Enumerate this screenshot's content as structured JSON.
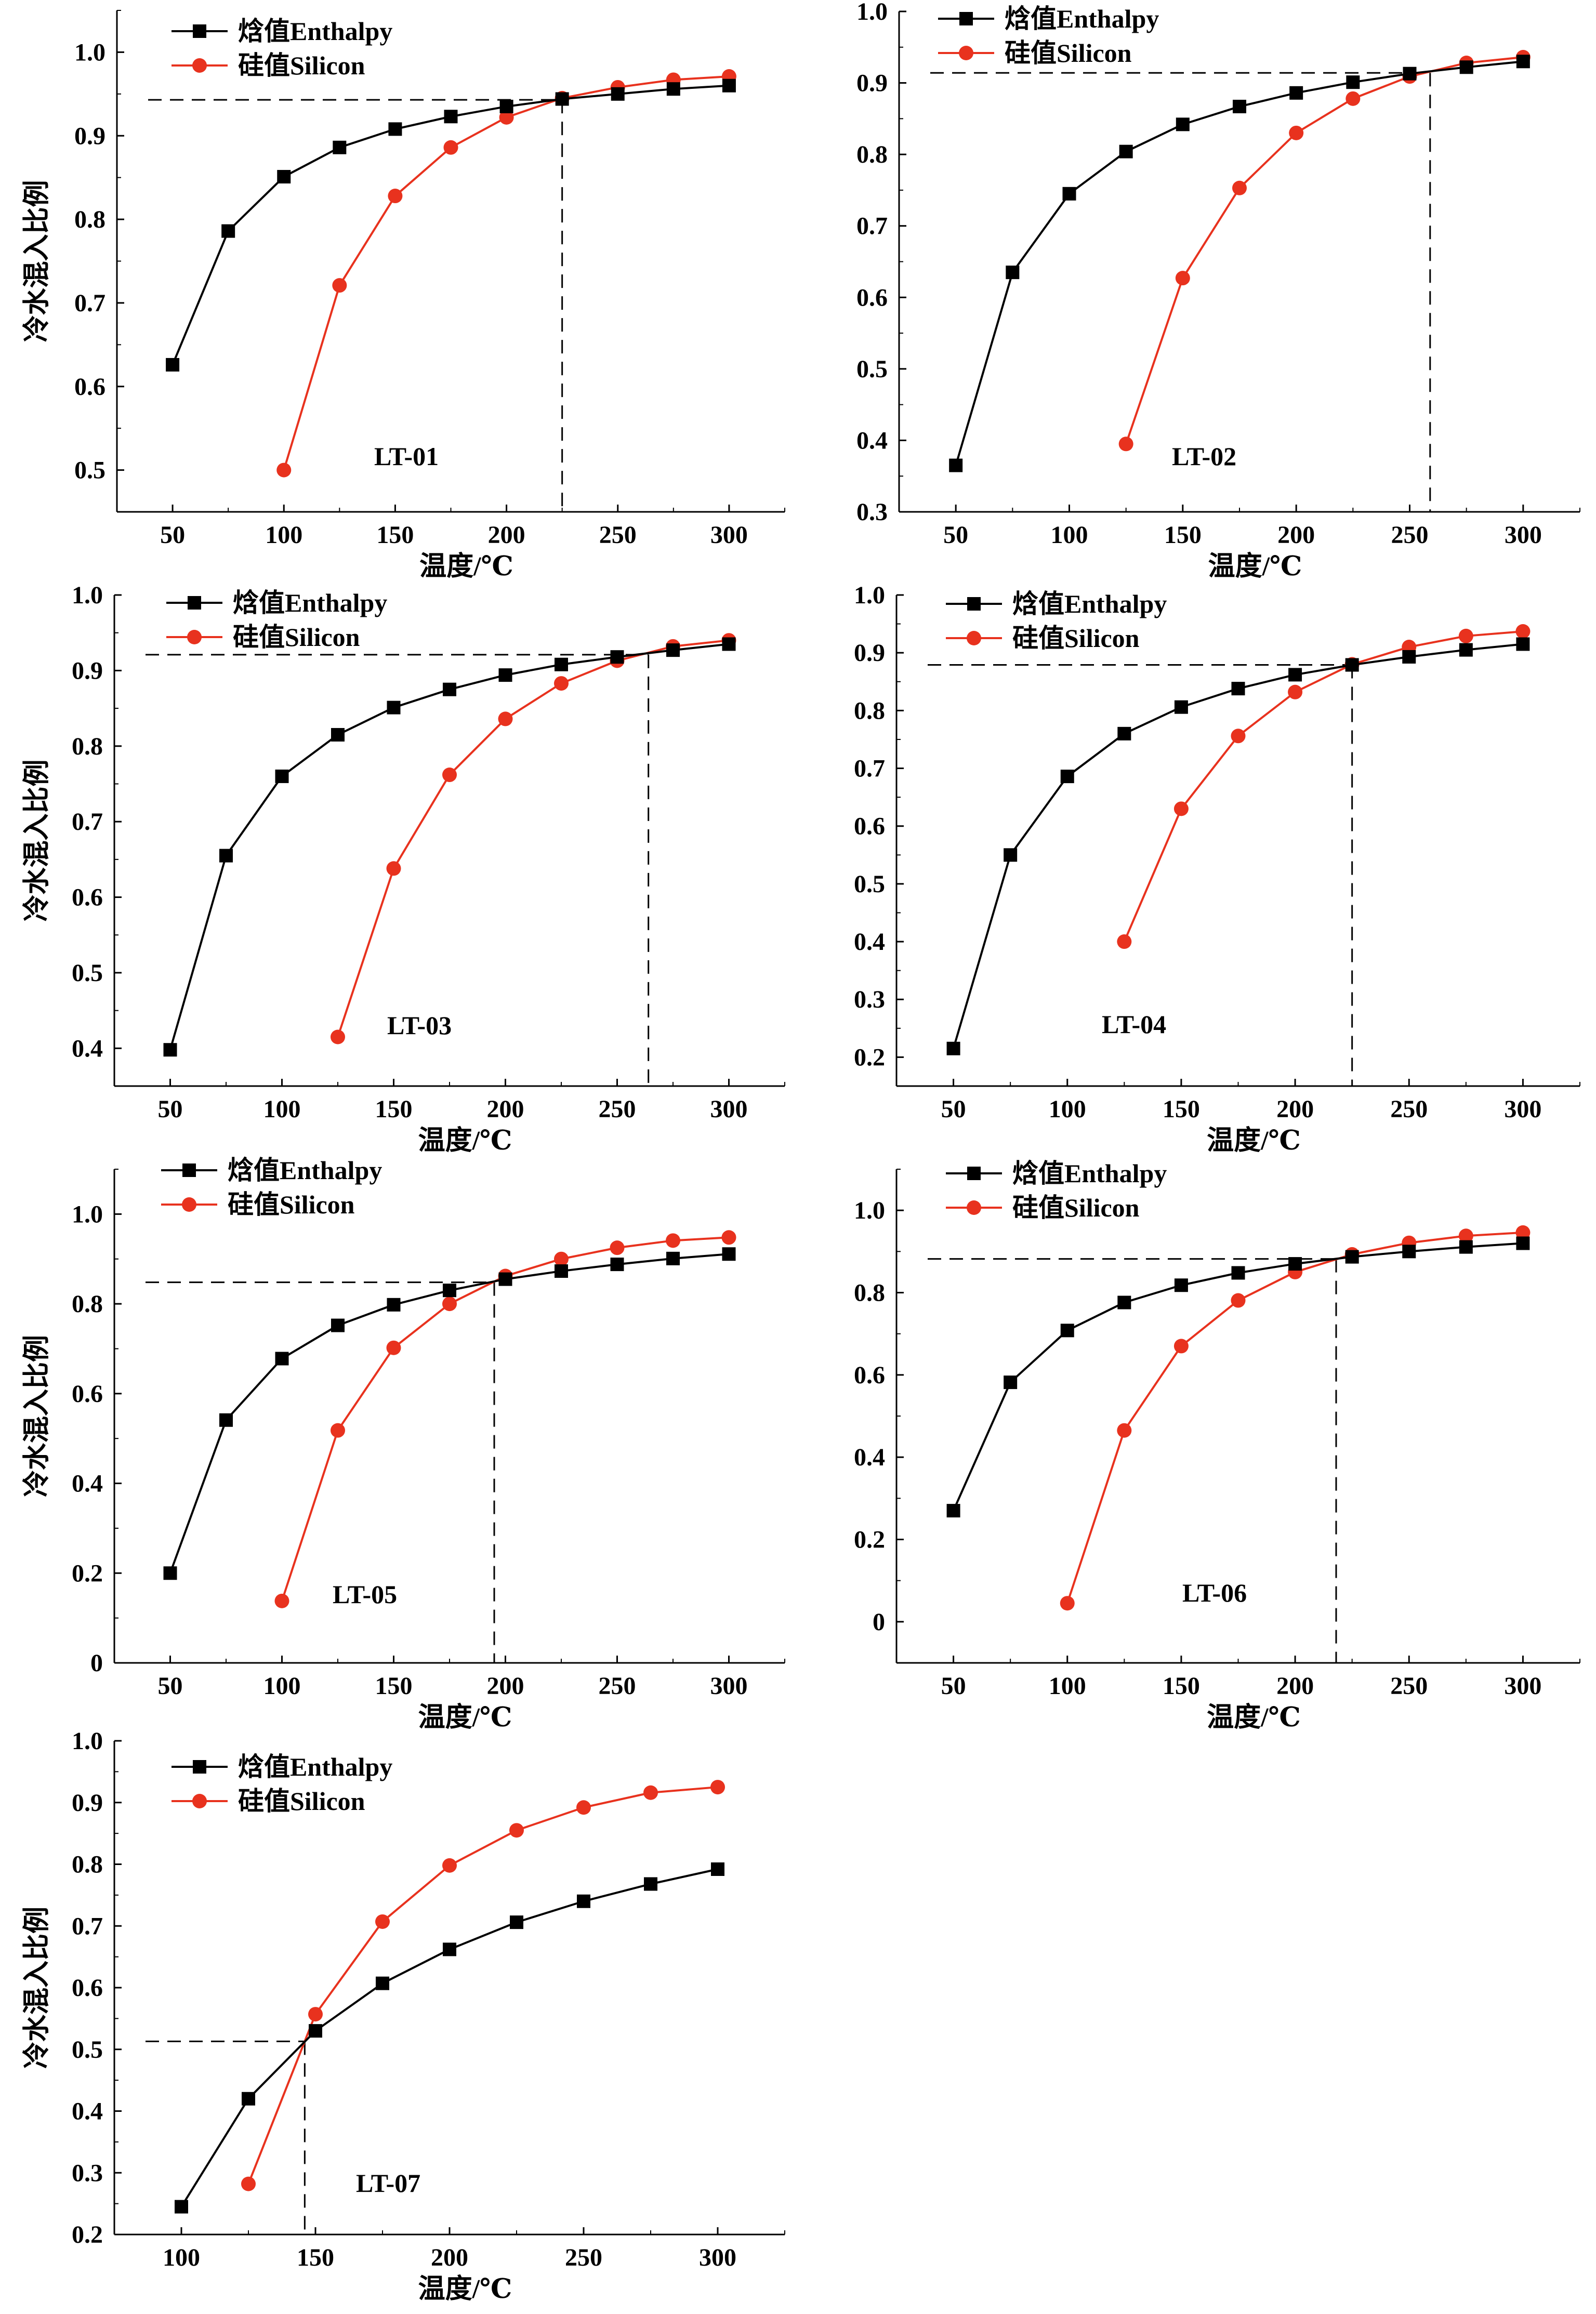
{
  "colors": {
    "enthalpy": "#000000",
    "silicon": "#e8321e",
    "axis": "#000000"
  },
  "chart_data": [
    {
      "type": "line",
      "panel_label": "LT-01",
      "x": [
        50,
        75,
        100,
        125,
        150,
        175,
        200,
        225,
        250,
        275,
        300
      ],
      "series": [
        {
          "name": "焓值Enthalpy",
          "marker": "square",
          "x": [
            50,
            75,
            100,
            125,
            150,
            175,
            200,
            225,
            250,
            275,
            300
          ],
          "values": [
            0.626,
            0.786,
            0.851,
            0.886,
            0.908,
            0.923,
            0.935,
            0.944,
            0.95,
            0.956,
            0.96
          ]
        },
        {
          "name": "硅值Silicon",
          "marker": "circle",
          "x": [
            100,
            125,
            150,
            175,
            200,
            225,
            250,
            275,
            300
          ],
          "values": [
            0.5,
            0.721,
            0.828,
            0.886,
            0.922,
            0.945,
            0.958,
            0.967,
            0.971
          ]
        }
      ],
      "xlabel": "温度/℃",
      "ylabel": "冷水混入比例",
      "xlim": [
        25,
        325
      ],
      "ylim": [
        0.45,
        1.05
      ],
      "xticks": [
        50,
        100,
        150,
        200,
        250,
        300
      ],
      "yticks": [
        0.5,
        0.6,
        0.7,
        0.8,
        0.9,
        1.0
      ],
      "intersection": {
        "x": 225,
        "y": 0.943
      }
    },
    {
      "type": "line",
      "panel_label": "LT-02",
      "x": [
        50,
        75,
        100,
        125,
        150,
        175,
        200,
        225,
        250,
        275,
        300
      ],
      "series": [
        {
          "name": "焓值Enthalpy",
          "marker": "square",
          "x": [
            50,
            75,
            100,
            125,
            150,
            175,
            200,
            225,
            250,
            275,
            300
          ],
          "values": [
            0.365,
            0.635,
            0.745,
            0.804,
            0.842,
            0.867,
            0.886,
            0.901,
            0.913,
            0.922,
            0.93
          ]
        },
        {
          "name": "硅值Silicon",
          "marker": "circle",
          "x": [
            125,
            150,
            175,
            200,
            225,
            250,
            275,
            300
          ],
          "values": [
            0.395,
            0.627,
            0.753,
            0.83,
            0.878,
            0.909,
            0.928,
            0.936
          ]
        }
      ],
      "xlabel": "温度/℃",
      "ylabel": "",
      "xlim": [
        25,
        325
      ],
      "ylim": [
        0.3,
        1.0
      ],
      "xticks": [
        50,
        100,
        150,
        200,
        250,
        300
      ],
      "yticks": [
        0.3,
        0.4,
        0.5,
        0.6,
        0.7,
        0.8,
        0.9,
        1.0
      ],
      "intersection": {
        "x": 259,
        "y": 0.914
      }
    },
    {
      "type": "line",
      "panel_label": "LT-03",
      "x": [
        50,
        75,
        100,
        125,
        150,
        175,
        200,
        225,
        250,
        275,
        300
      ],
      "series": [
        {
          "name": "焓值Enthalpy",
          "marker": "square",
          "x": [
            50,
            75,
            100,
            125,
            150,
            175,
            200,
            225,
            250,
            275,
            300
          ],
          "values": [
            0.398,
            0.655,
            0.76,
            0.815,
            0.851,
            0.875,
            0.894,
            0.908,
            0.918,
            0.927,
            0.935
          ]
        },
        {
          "name": "硅值Silicon",
          "marker": "circle",
          "x": [
            125,
            150,
            175,
            200,
            225,
            250,
            275,
            300
          ],
          "values": [
            0.415,
            0.638,
            0.762,
            0.836,
            0.883,
            0.913,
            0.932,
            0.94
          ]
        }
      ],
      "xlabel": "温度/℃",
      "ylabel": "冷水混入比例",
      "xlim": [
        25,
        325
      ],
      "ylim": [
        0.35,
        1.0
      ],
      "xticks": [
        50,
        100,
        150,
        200,
        250,
        300
      ],
      "yticks": [
        0.4,
        0.5,
        0.6,
        0.7,
        0.8,
        0.9,
        1.0
      ],
      "intersection": {
        "x": 264,
        "y": 0.921
      }
    },
    {
      "type": "line",
      "panel_label": "LT-04",
      "x": [
        50,
        75,
        100,
        125,
        150,
        175,
        200,
        225,
        250,
        275,
        300
      ],
      "series": [
        {
          "name": "焓值Enthalpy",
          "marker": "square",
          "x": [
            50,
            75,
            100,
            125,
            150,
            175,
            200,
            225,
            250,
            275,
            300
          ],
          "values": [
            0.215,
            0.55,
            0.686,
            0.76,
            0.806,
            0.838,
            0.862,
            0.879,
            0.893,
            0.905,
            0.915
          ]
        },
        {
          "name": "硅值Silicon",
          "marker": "circle",
          "x": [
            125,
            150,
            175,
            200,
            225,
            250,
            275,
            300
          ],
          "values": [
            0.4,
            0.63,
            0.756,
            0.832,
            0.88,
            0.91,
            0.929,
            0.937
          ]
        }
      ],
      "xlabel": "温度/℃",
      "ylabel": "",
      "xlim": [
        25,
        325
      ],
      "ylim": [
        0.15,
        1.0
      ],
      "xticks": [
        50,
        100,
        150,
        200,
        250,
        300
      ],
      "yticks": [
        0.2,
        0.3,
        0.4,
        0.5,
        0.6,
        0.7,
        0.8,
        0.9,
        1.0
      ],
      "intersection": {
        "x": 225,
        "y": 0.879
      }
    },
    {
      "type": "line",
      "panel_label": "LT-05",
      "x": [
        50,
        75,
        100,
        125,
        150,
        175,
        200,
        225,
        250,
        275,
        300
      ],
      "series": [
        {
          "name": "焓值Enthalpy",
          "marker": "square",
          "x": [
            50,
            75,
            100,
            125,
            150,
            175,
            200,
            225,
            250,
            275,
            300
          ],
          "values": [
            0.2,
            0.541,
            0.678,
            0.752,
            0.798,
            0.83,
            0.855,
            0.873,
            0.888,
            0.901,
            0.911
          ]
        },
        {
          "name": "硅值Silicon",
          "marker": "circle",
          "x": [
            100,
            125,
            150,
            175,
            200,
            225,
            250,
            275,
            300
          ],
          "values": [
            0.138,
            0.518,
            0.702,
            0.8,
            0.862,
            0.9,
            0.925,
            0.941,
            0.948
          ]
        }
      ],
      "xlabel": "温度/℃",
      "ylabel": "冷水混入比例",
      "xlim": [
        25,
        325
      ],
      "ylim": [
        0.0,
        1.1
      ],
      "xticks": [
        50,
        100,
        150,
        200,
        250,
        300
      ],
      "yticks": [
        0,
        0.2,
        0.4,
        0.6,
        0.8,
        1.0
      ],
      "ytick_labels": [
        "0",
        "0.2",
        "0.4",
        "0.6",
        "0.8",
        "1.0"
      ],
      "intersection": {
        "x": 195,
        "y": 0.848
      }
    },
    {
      "type": "line",
      "panel_label": "LT-06",
      "x": [
        50,
        75,
        100,
        125,
        150,
        175,
        200,
        225,
        250,
        275,
        300
      ],
      "series": [
        {
          "name": "焓值Enthalpy",
          "marker": "square",
          "x": [
            50,
            75,
            100,
            125,
            150,
            175,
            200,
            225,
            250,
            275,
            300
          ],
          "values": [
            0.27,
            0.582,
            0.708,
            0.776,
            0.818,
            0.848,
            0.87,
            0.887,
            0.9,
            0.911,
            0.92
          ]
        },
        {
          "name": "硅值Silicon",
          "marker": "circle",
          "x": [
            100,
            125,
            150,
            175,
            200,
            225,
            250,
            275,
            300
          ],
          "values": [
            0.045,
            0.465,
            0.67,
            0.781,
            0.85,
            0.893,
            0.921,
            0.938,
            0.946
          ]
        }
      ],
      "xlabel": "温度/℃",
      "ylabel": "",
      "xlim": [
        25,
        325
      ],
      "ylim": [
        -0.1,
        1.1
      ],
      "xticks": [
        50,
        100,
        150,
        200,
        250,
        300
      ],
      "yticks": [
        0,
        0.2,
        0.4,
        0.6,
        0.8,
        1.0
      ],
      "ytick_labels": [
        "0",
        "0.2",
        "0.4",
        "0.6",
        "0.8",
        "1.0"
      ],
      "intersection": {
        "x": 218,
        "y": 0.882
      }
    },
    {
      "type": "line",
      "panel_label": "LT-07",
      "x": [
        100,
        125,
        150,
        175,
        200,
        225,
        250,
        275,
        300
      ],
      "series": [
        {
          "name": "焓值Enthalpy",
          "marker": "square",
          "x": [
            100,
            125,
            150,
            175,
            200,
            225,
            250,
            275,
            300
          ],
          "values": [
            0.245,
            0.42,
            0.53,
            0.607,
            0.662,
            0.706,
            0.74,
            0.768,
            0.792
          ]
        },
        {
          "name": "硅值Silicon",
          "marker": "circle",
          "x": [
            125,
            150,
            175,
            200,
            225,
            250,
            275,
            300
          ],
          "values": [
            0.282,
            0.557,
            0.707,
            0.798,
            0.855,
            0.892,
            0.916,
            0.925
          ]
        }
      ],
      "xlabel": "温度/℃",
      "ylabel": "冷水混入比例",
      "xlim": [
        75,
        325
      ],
      "ylim": [
        0.2,
        1.0
      ],
      "xticks": [
        100,
        150,
        200,
        250,
        300
      ],
      "yticks": [
        0.2,
        0.3,
        0.4,
        0.5,
        0.6,
        0.7,
        0.8,
        0.9,
        1.0
      ],
      "intersection": {
        "x": 146,
        "y": 0.513
      }
    }
  ]
}
